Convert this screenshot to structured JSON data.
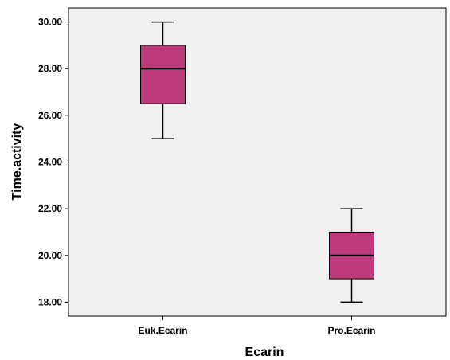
{
  "chart_data": {
    "type": "boxplot",
    "xlabel": "Ecarin",
    "ylabel": "Time.activity",
    "ylim": [
      17.4,
      30.6
    ],
    "yticks": [
      "18.00",
      "20.00",
      "22.00",
      "24.00",
      "26.00",
      "28.00",
      "30.00"
    ],
    "categories": [
      "Euk.Ecarin",
      "Pro.Ecarin"
    ],
    "boxes": [
      {
        "category": "Euk.Ecarin",
        "min": 25,
        "q1": 26.5,
        "median": 28,
        "q3": 29,
        "max": 30
      },
      {
        "category": "Pro.Ecarin",
        "min": 18,
        "q1": 19,
        "median": 20,
        "q3": 21,
        "max": 22
      }
    ],
    "colors": {
      "box_fill": "#bd3a7d",
      "plot_background": "#f0f0f0",
      "lines": "#000000"
    },
    "grid": false,
    "legend": "none"
  }
}
